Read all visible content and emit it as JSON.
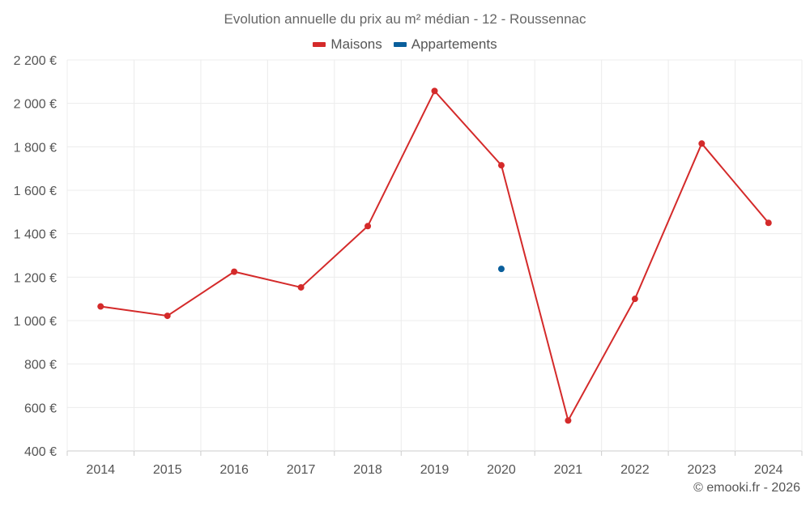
{
  "chart_data": {
    "type": "line",
    "title": "Evolution annuelle du prix au m² médian - 12 - Roussennac",
    "categories": [
      "2014",
      "2015",
      "2016",
      "2017",
      "2018",
      "2019",
      "2020",
      "2021",
      "2022",
      "2023",
      "2024"
    ],
    "series": [
      {
        "name": "Maisons",
        "color": "#d42a2a",
        "values": [
          1065,
          1022,
          1225,
          1153,
          1435,
          2057,
          1715,
          540,
          1100,
          1815,
          1450
        ]
      },
      {
        "name": "Appartements",
        "color": "#0a5f9c",
        "values": [
          null,
          null,
          null,
          null,
          null,
          null,
          1238,
          null,
          null,
          null,
          null
        ]
      }
    ],
    "y_ticks": [
      400,
      600,
      800,
      1000,
      1200,
      1400,
      1600,
      1800,
      2000,
      2200
    ],
    "y_tick_labels": [
      "400 €",
      "600 €",
      "800 €",
      "1 000 €",
      "1 200 €",
      "1 400 €",
      "1 600 €",
      "1 800 €",
      "2 000 €",
      "2 200 €"
    ],
    "ylim": [
      400,
      2200
    ],
    "grid": true,
    "legend_position": "top-center"
  },
  "credit": "© emooki.fr - 2026"
}
